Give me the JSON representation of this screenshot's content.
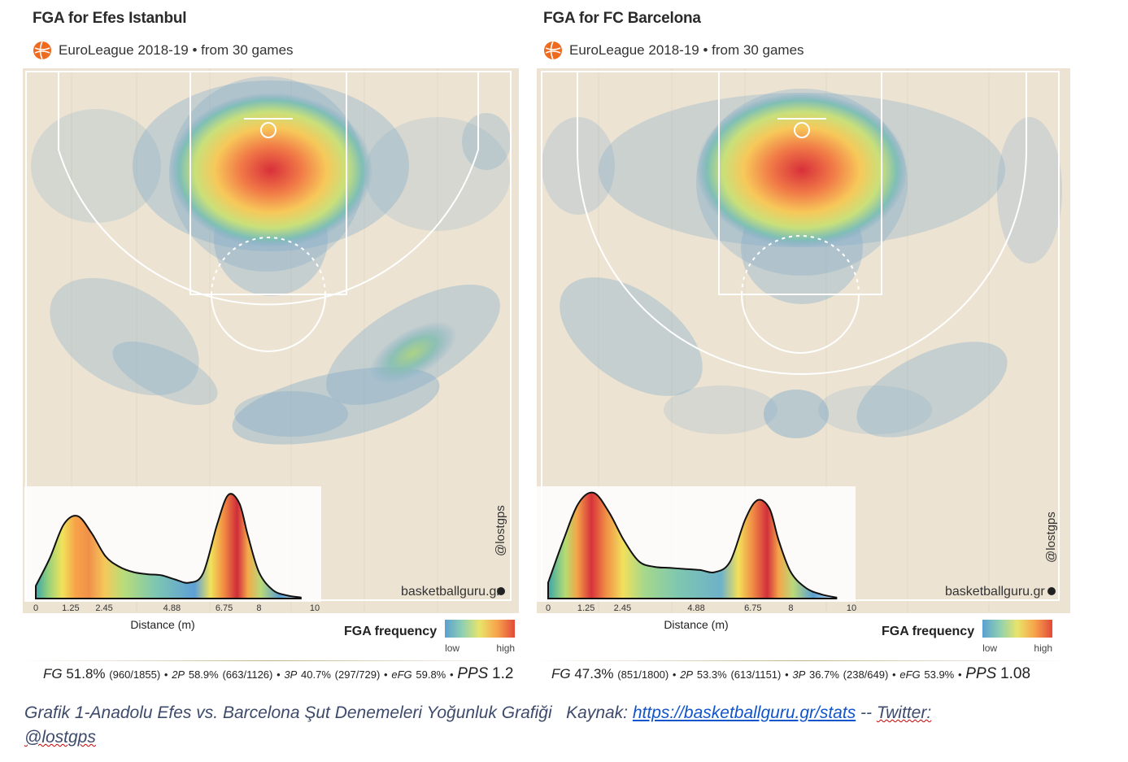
{
  "figure": {
    "caption_prefix": "Grafik 1-Anadolu Efes vs. Barcelona Şut Denemeleri Yoğunluk Grafiği",
    "caption_source_label": "Kaynak:",
    "caption_link": "https://basketballguru.gr/stats",
    "caption_sep": "--",
    "caption_twitter": "Twitter:",
    "caption_handle": "@lostgps"
  },
  "colors": {
    "court": "#ece3d3",
    "high": "#d9322f",
    "low": "#5a9fd1"
  },
  "watermark": "@lostgps",
  "site": "basketballguru.gr",
  "legend": {
    "title": "FGA frequency",
    "low": "low",
    "high": "high"
  },
  "chart_data": [
    {
      "type": "heatmap",
      "title": "FGA for Efes Istanbul",
      "subtitle": "EuroLeague 2018-19 • from  30 games",
      "xlabel": "Distance (m)",
      "x_ticks": [
        "0",
        "1.25",
        "2.45",
        "4.88",
        "6.75",
        "8",
        "10"
      ],
      "x_tick_values": [
        0,
        1.25,
        2.45,
        4.88,
        6.75,
        8,
        10
      ],
      "xlim": [
        0,
        10
      ],
      "distance_density": {
        "x": [
          0,
          0.5,
          1.0,
          1.5,
          2.0,
          2.5,
          3.0,
          3.5,
          4.0,
          4.5,
          5.0,
          5.5,
          6.0,
          6.5,
          6.9,
          7.3,
          7.6,
          8.0,
          8.5,
          9.0,
          9.5
        ],
        "y": [
          0.12,
          0.38,
          0.7,
          0.78,
          0.62,
          0.4,
          0.3,
          0.25,
          0.23,
          0.22,
          0.18,
          0.15,
          0.24,
          0.7,
          0.98,
          0.9,
          0.6,
          0.25,
          0.08,
          0.03,
          0.01
        ]
      },
      "hotspots": [
        {
          "zone": "restricted area",
          "intensity": 1.0
        },
        {
          "zone": "right wing three",
          "intensity": 0.45
        },
        {
          "zone": "left corner three",
          "intensity": 0.35
        },
        {
          "zone": "top of key three",
          "intensity": 0.3
        }
      ],
      "stats": {
        "fg_label": "FG",
        "fg_pct": "51.8%",
        "fg_att": "(960/1855)",
        "p2_label": "2P",
        "p2_pct": "58.9%",
        "p2_att": "(663/1126)",
        "p3_label": "3P",
        "p3_pct": "40.7%",
        "p3_att": "(297/729)",
        "efg_label": "eFG",
        "efg_pct": "59.8%",
        "pps_label": "PPS",
        "pps": "1.2"
      }
    },
    {
      "type": "heatmap",
      "title": "FGA for FC Barcelona",
      "subtitle": "EuroLeague 2018-19 • from  30 games",
      "xlabel": "Distance (m)",
      "x_ticks": [
        "0",
        "1.25",
        "2.45",
        "4.88",
        "6.75",
        "8",
        "10"
      ],
      "x_tick_values": [
        0,
        1.25,
        2.45,
        4.88,
        6.75,
        8,
        10
      ],
      "xlim": [
        0,
        10
      ],
      "distance_density": {
        "x": [
          0,
          0.5,
          1.0,
          1.5,
          2.0,
          2.5,
          3.0,
          3.5,
          4.0,
          4.5,
          5.0,
          5.5,
          6.0,
          6.5,
          6.9,
          7.3,
          7.6,
          8.0,
          8.5,
          9.0,
          9.5
        ],
        "y": [
          0.15,
          0.55,
          0.9,
          1.0,
          0.82,
          0.55,
          0.35,
          0.3,
          0.29,
          0.28,
          0.27,
          0.25,
          0.35,
          0.75,
          0.93,
          0.85,
          0.55,
          0.25,
          0.1,
          0.04,
          0.01
        ]
      },
      "hotspots": [
        {
          "zone": "restricted area",
          "intensity": 1.0
        },
        {
          "zone": "left wing three",
          "intensity": 0.35
        },
        {
          "zone": "right wing three",
          "intensity": 0.35
        },
        {
          "zone": "top of key three",
          "intensity": 0.3
        }
      ],
      "stats": {
        "fg_label": "FG",
        "fg_pct": "47.3%",
        "fg_att": "(851/1800)",
        "p2_label": "2P",
        "p2_pct": "53.3%",
        "p2_att": "(613/1151)",
        "p3_label": "3P",
        "p3_pct": "36.7%",
        "p3_att": "(238/649)",
        "efg_label": "eFG",
        "efg_pct": "53.9%",
        "pps_label": "PPS",
        "pps": "1.08"
      }
    }
  ]
}
